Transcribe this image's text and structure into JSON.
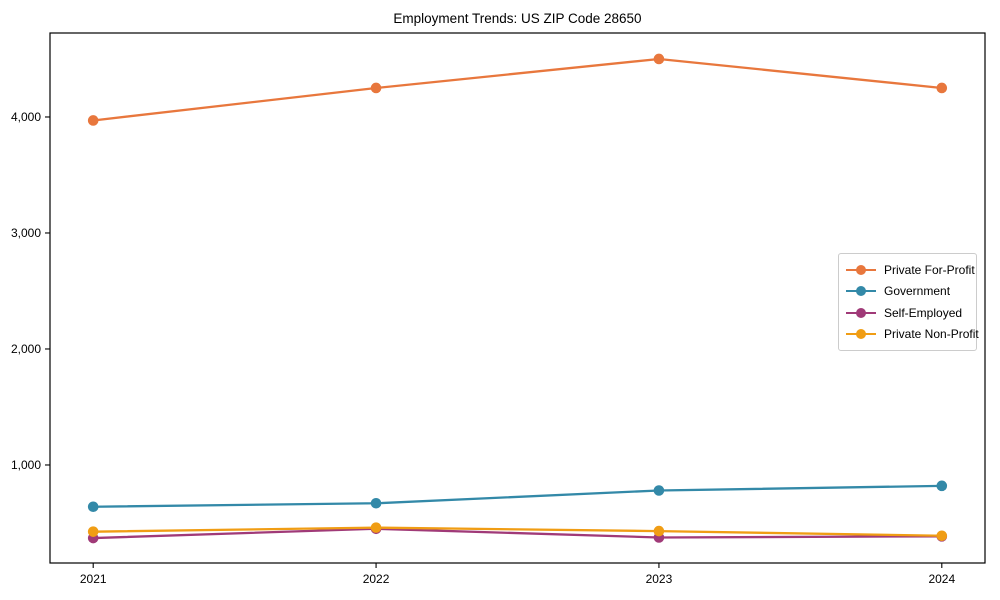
{
  "title": "Employment Trends: US ZIP Code 28650",
  "chart_data": {
    "type": "line",
    "x": [
      2021,
      2022,
      2023,
      2024
    ],
    "xtick_labels": [
      "2021",
      "2022",
      "2023",
      "2024"
    ],
    "yticks": [
      1000,
      2000,
      3000,
      4000
    ],
    "ytick_labels": [
      "1,000",
      "2,000",
      "3,000",
      "4,000"
    ],
    "ylim": [
      155,
      4724
    ],
    "xlabel": "",
    "ylabel": "",
    "grid": false,
    "legend_position": "center right",
    "series": [
      {
        "name": "Private For-Profit",
        "color": "#e8773d",
        "values": [
          3970,
          4250,
          4500,
          4250
        ]
      },
      {
        "name": "Government",
        "color": "#3389a8",
        "values": [
          640,
          670,
          780,
          820
        ]
      },
      {
        "name": "Self-Employed",
        "color": "#a03a78",
        "values": [
          370,
          450,
          375,
          385
        ]
      },
      {
        "name": "Private Non-Profit",
        "color": "#f09d14",
        "values": [
          425,
          460,
          430,
          390
        ]
      }
    ]
  }
}
